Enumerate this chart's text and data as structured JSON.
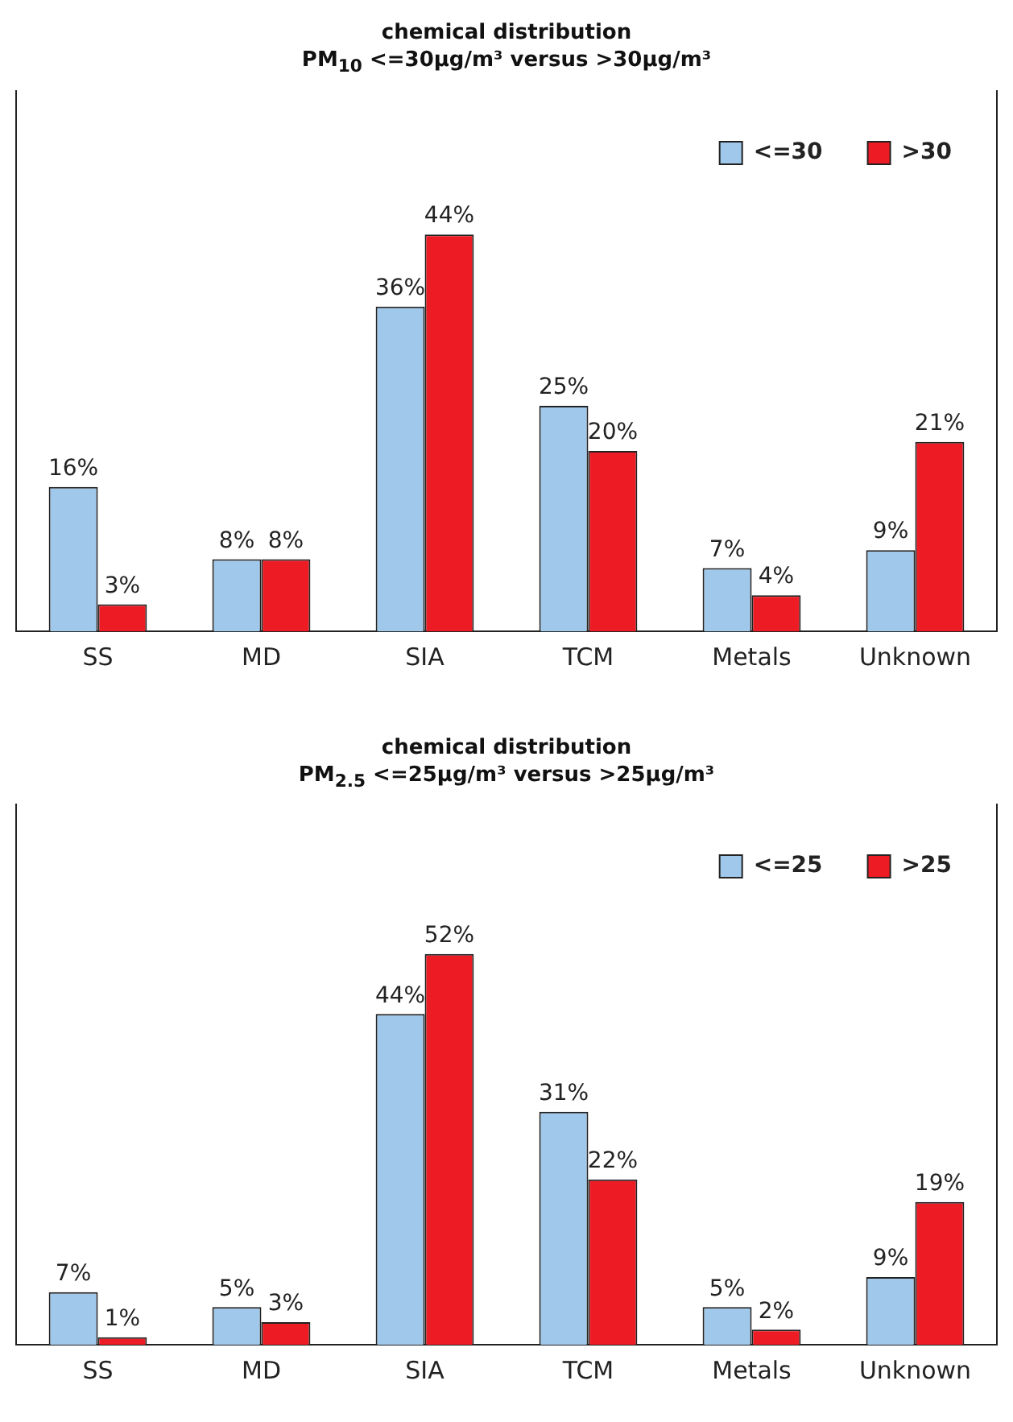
{
  "chart_data": [
    {
      "type": "bar",
      "title": "chemical distribution",
      "subtitle": "PM$_{10}$ <=30μg/m³ versus >30μg/m³",
      "categories": [
        "SS",
        "MD",
        "SIA",
        "TCM",
        "Metals",
        "Unknown"
      ],
      "series": [
        {
          "name": "<=30",
          "color": "#9fc8ea",
          "values": [
            16,
            8,
            36,
            25,
            7,
            9
          ],
          "value_labels": [
            "16%",
            "8%",
            "36%",
            "25%",
            "7%",
            "9%"
          ]
        },
        {
          "name": ">30",
          "color": "#ed1c24",
          "values": [
            3,
            8,
            44,
            20,
            4,
            21
          ],
          "value_labels": [
            "3%",
            "8%",
            "44%",
            "20%",
            "4%",
            "21%"
          ]
        }
      ],
      "legend": "top right"
    },
    {
      "type": "bar",
      "title": "chemical distribution",
      "subtitle": "PM$_{2.5}$ <=25μg/m³ versus >25μg/m³",
      "categories": [
        "SS",
        "MD",
        "SIA",
        "TCM",
        "Metals",
        "Unknown"
      ],
      "series": [
        {
          "name": "<=25",
          "color": "#9fc8ea",
          "values": [
            7,
            5,
            44,
            31,
            5,
            9
          ],
          "value_labels": [
            "7%",
            "5%",
            "44%",
            "31%",
            "5%",
            "9%"
          ]
        },
        {
          "name": ">25",
          "color": "#ed1c24",
          "values": [
            1,
            3,
            52,
            22,
            2,
            19
          ],
          "value_labels": [
            "1%",
            "3%",
            "52%",
            "22%",
            "2%",
            "19%"
          ]
        }
      ],
      "legend": "top right"
    }
  ]
}
